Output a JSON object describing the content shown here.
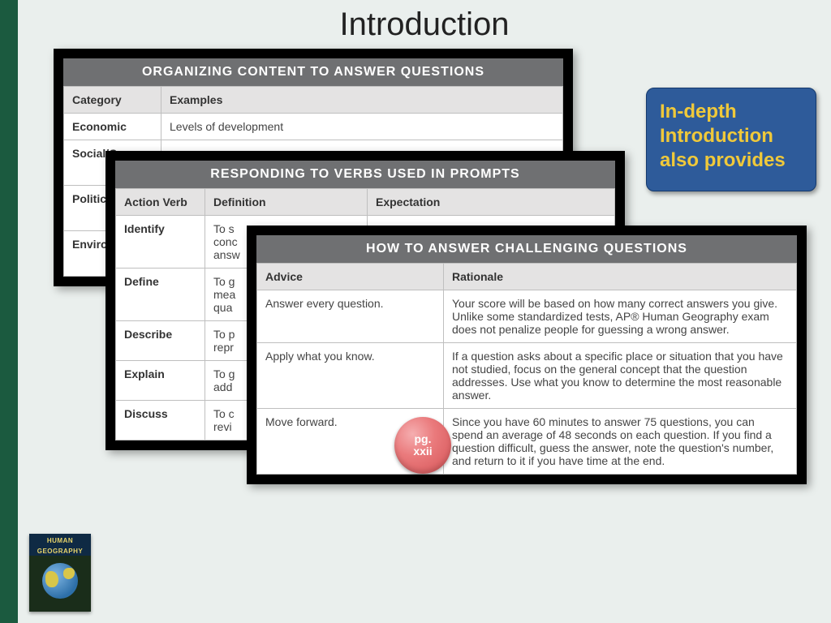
{
  "colors": {
    "page_bg": "#eaefed",
    "left_stripe": "#1b5a3f",
    "card_border": "#000000",
    "card_header_bg": "#6f7072",
    "card_header_fg": "#ffffff",
    "th_bg": "#e4e3e3",
    "cell_border": "#bfbfbf",
    "callout_bg": "#2e5b9a",
    "callout_fg": "#f0c93a",
    "bubble_bg": "#e06f72"
  },
  "title": "Introduction",
  "callout": "In-depth Introduction also provides",
  "page_bubble": {
    "line1": "pg.",
    "line2": "xxii"
  },
  "card1": {
    "title": "ORGANIZING CONTENT TO ANSWER QUESTIONS",
    "headers": [
      "Category",
      "Examples"
    ],
    "rows": [
      {
        "category": "Economic",
        "example": "Levels of development"
      },
      {
        "category": "Social/C",
        "example": ""
      },
      {
        "category": "Political",
        "example": ""
      },
      {
        "category": "Environ",
        "example": ""
      }
    ]
  },
  "card2": {
    "title": "RESPONDING TO VERBS USED IN PROMPTS",
    "headers": [
      "Action Verb",
      "Definition",
      "Expectation"
    ],
    "rows": [
      {
        "verb": "Identify",
        "def": "To s\nconc\nansw",
        "exp": ""
      },
      {
        "verb": "Define",
        "def": "To g\nmea\nqua",
        "exp": ""
      },
      {
        "verb": "Describe",
        "def": "To p\nrepr",
        "exp": ""
      },
      {
        "verb": "Explain",
        "def": "To g\nadd",
        "exp": ""
      },
      {
        "verb": "Discuss",
        "def": "To c\nrevi",
        "exp": ""
      }
    ]
  },
  "card3": {
    "title": "HOW TO ANSWER CHALLENGING QUESTIONS",
    "headers": [
      "Advice",
      "Rationale"
    ],
    "rows": [
      {
        "advice": "Answer every question.",
        "rationale": "Your score will be based on how many correct answers you give. Unlike some standardized tests, AP® Human Geography exam does not penalize people for guessing a wrong answer."
      },
      {
        "advice": "Apply what you know.",
        "rationale": "If a question asks about a specific place or situation that you have not studied, focus on the general concept that the question addresses. Use what you know to determine the most reasonable answer."
      },
      {
        "advice": "Move forward.",
        "rationale": "Since you have 60 minutes to answer 75 questions, you can spend an average of 48 seconds on each question. If you find a question difficult, guess the answer, note the question's number, and return to it if you have time at the end."
      }
    ]
  },
  "book": {
    "line1": "HUMAN",
    "line2": "GEOGRAPHY"
  }
}
